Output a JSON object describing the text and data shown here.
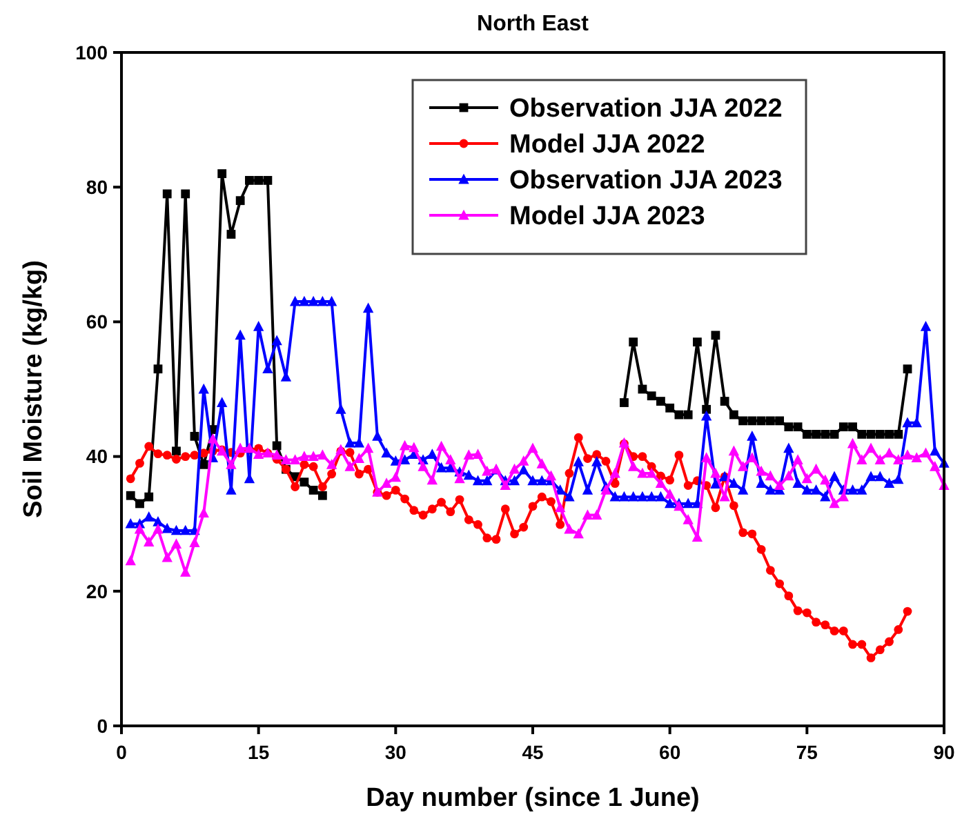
{
  "chart_data": {
    "type": "line",
    "title": "North East",
    "xlabel": "Day number (since 1 June)",
    "ylabel": "Soil Moisture (kg/kg)",
    "xlim": [
      0,
      90
    ],
    "xticks": [
      0,
      15,
      30,
      45,
      60,
      75,
      90
    ],
    "ylim": [
      0,
      100
    ],
    "yticks": [
      0,
      20,
      40,
      60,
      80,
      100
    ],
    "grid": false,
    "legend": "top right",
    "line_style": "solid",
    "series": [
      {
        "name": "Observation JJA 2022",
        "color": "#000000",
        "marker": "square",
        "x": [
          1,
          2,
          3,
          4,
          5,
          6,
          7,
          8,
          9,
          10,
          11,
          12,
          13,
          14,
          15,
          16,
          17,
          18,
          19,
          20,
          21,
          22,
          23,
          55,
          56,
          57,
          58,
          59,
          60,
          61,
          62,
          63,
          64,
          65,
          66,
          67,
          68,
          69,
          70,
          71,
          72,
          73,
          74,
          75,
          76,
          77,
          78,
          79,
          80,
          81,
          82,
          83,
          84,
          85,
          86
        ],
        "values": [
          34.2,
          33,
          34,
          53,
          79,
          40.8,
          79,
          43,
          38.8,
          44,
          82,
          73,
          78,
          81,
          81,
          81,
          41.6,
          38.1,
          37,
          36.2,
          35,
          34.2,
          null,
          48,
          57,
          50,
          49,
          48.2,
          47.2,
          46.2,
          46.2,
          57,
          47,
          58,
          48.2,
          46.2,
          45.3,
          45.3,
          45.3,
          45.3,
          45.3,
          44.4,
          44.4,
          43.3,
          43.3,
          43.3,
          43.3,
          44.4,
          44.4,
          43.3,
          43.3,
          43.3,
          43.3,
          43.3,
          53
        ]
      },
      {
        "name": "Model JJA 2022",
        "color": "#ff0000",
        "marker": "circle",
        "x": [
          1,
          2,
          3,
          4,
          5,
          6,
          7,
          8,
          9,
          10,
          11,
          12,
          13,
          14,
          15,
          16,
          17,
          18,
          19,
          20,
          21,
          22,
          23,
          24,
          25,
          26,
          27,
          28,
          29,
          30,
          31,
          32,
          33,
          34,
          35,
          36,
          37,
          38,
          39,
          40,
          41,
          42,
          43,
          44,
          45,
          46,
          47,
          48,
          49,
          50,
          51,
          52,
          53,
          54,
          55,
          56,
          57,
          58,
          59,
          60,
          61,
          62,
          63,
          64,
          65,
          66,
          67,
          68,
          69,
          70,
          71,
          72,
          73,
          74,
          75,
          76,
          77,
          78,
          79,
          80,
          81,
          82,
          83,
          84,
          85,
          86
        ],
        "values": [
          36.7,
          39,
          41.5,
          40.4,
          40.2,
          39.6,
          40,
          40.2,
          40.5,
          40.8,
          41,
          40.6,
          40.5,
          41,
          41.2,
          40.5,
          39.6,
          38.1,
          35.5,
          38.8,
          38.5,
          35.5,
          37.4,
          40.8,
          40.6,
          37.4,
          38.1,
          34.7,
          34.2,
          35,
          33.7,
          32,
          31.3,
          32.2,
          33.2,
          31.8,
          33.6,
          30.6,
          29.9,
          27.9,
          27.7,
          32.2,
          28.5,
          29.5,
          32.6,
          34,
          33.3,
          29.9,
          37.5,
          42.8,
          39.7,
          40.3,
          39.3,
          36,
          41.9,
          40,
          40,
          38.5,
          37.1,
          36.5,
          40.2,
          35.7,
          36.4,
          35.7,
          32.4,
          37,
          32.7,
          28.7,
          28.5,
          26.2,
          23.1,
          21.1,
          19.3,
          17.1,
          16.8,
          15.4,
          15,
          14.1,
          14.1,
          12.1,
          12.1,
          10.1,
          11.3,
          12.5,
          14.3,
          17
        ]
      },
      {
        "name": "Observation JJA 2023",
        "color": "#0000ff",
        "marker": "triangle",
        "x": [
          1,
          2,
          3,
          4,
          5,
          6,
          7,
          8,
          9,
          10,
          11,
          12,
          13,
          14,
          15,
          16,
          17,
          18,
          19,
          20,
          21,
          22,
          23,
          24,
          25,
          26,
          27,
          28,
          29,
          30,
          31,
          32,
          33,
          34,
          35,
          36,
          37,
          38,
          39,
          40,
          41,
          42,
          43,
          44,
          45,
          46,
          47,
          48,
          49,
          50,
          51,
          52,
          53,
          54,
          55,
          56,
          57,
          58,
          59,
          60,
          61,
          62,
          63,
          64,
          65,
          66,
          67,
          68,
          69,
          70,
          71,
          72,
          73,
          74,
          75,
          76,
          77,
          78,
          79,
          80,
          81,
          82,
          83,
          84,
          85,
          86,
          87,
          88,
          89,
          90
        ],
        "values": [
          30,
          30,
          31,
          30.3,
          29.3,
          29,
          29,
          29,
          50,
          39.8,
          48,
          35,
          58,
          36.7,
          59.3,
          53,
          57.2,
          51.8,
          63,
          63,
          63,
          63,
          63,
          47,
          42,
          42,
          62,
          43,
          40.5,
          39.3,
          39.5,
          40.3,
          39.5,
          40.3,
          38.3,
          38.3,
          37.7,
          37.2,
          36.4,
          36.4,
          38,
          36.4,
          36.4,
          38,
          36.4,
          36.4,
          36.4,
          35,
          34,
          39.2,
          35,
          39.2,
          35.5,
          34,
          34,
          34,
          34,
          34,
          34,
          33,
          33,
          33,
          33,
          46,
          35.9,
          37,
          36,
          35,
          43,
          36,
          35,
          35,
          41.2,
          36,
          35,
          35,
          34,
          37,
          35,
          35,
          35,
          37,
          37,
          36,
          36.6,
          45,
          45,
          59.3,
          40.8,
          39
        ]
      },
      {
        "name": "Model JJA 2023",
        "color": "#ff00ff",
        "marker": "triangle",
        "x": [
          1,
          2,
          3,
          4,
          5,
          6,
          7,
          8,
          9,
          10,
          11,
          12,
          13,
          14,
          15,
          16,
          17,
          18,
          19,
          20,
          21,
          22,
          23,
          24,
          25,
          26,
          27,
          28,
          29,
          30,
          31,
          32,
          33,
          34,
          35,
          36,
          37,
          38,
          39,
          40,
          41,
          42,
          43,
          44,
          45,
          46,
          47,
          48,
          49,
          50,
          51,
          52,
          53,
          54,
          55,
          56,
          57,
          58,
          59,
          60,
          61,
          62,
          63,
          64,
          65,
          66,
          67,
          68,
          69,
          70,
          71,
          72,
          73,
          74,
          75,
          76,
          77,
          78,
          79,
          80,
          81,
          82,
          83,
          84,
          85,
          86,
          87,
          88,
          89,
          90
        ],
        "values": [
          24.5,
          29.2,
          27.3,
          29.2,
          25,
          27,
          22.8,
          27.2,
          31.6,
          42.6,
          40.8,
          38.8,
          41.2,
          41.2,
          40.3,
          40.5,
          40.2,
          39.5,
          39.5,
          40,
          40,
          40.2,
          38.8,
          41,
          38.5,
          39.7,
          41.2,
          34.7,
          36,
          36.9,
          41.6,
          41.3,
          38.5,
          36.5,
          41.5,
          39.5,
          36.7,
          40.2,
          40.3,
          37.8,
          38.1,
          35.7,
          38.1,
          39.3,
          41.2,
          38.9,
          37.1,
          32.4,
          29.2,
          28.5,
          31.3,
          31.3,
          35,
          37.5,
          42,
          38.5,
          37.5,
          37.5,
          36,
          34.4,
          32.6,
          30.6,
          28,
          39.8,
          37.5,
          34,
          40.8,
          38.5,
          39.8,
          37.8,
          37.1,
          35.7,
          37.1,
          39.5,
          36.7,
          38.1,
          36.5,
          33,
          34,
          41.9,
          39.5,
          41.2,
          39.5,
          40.5,
          39.5,
          40.2,
          39.8,
          40.5,
          38.5,
          35.7
        ]
      }
    ]
  }
}
